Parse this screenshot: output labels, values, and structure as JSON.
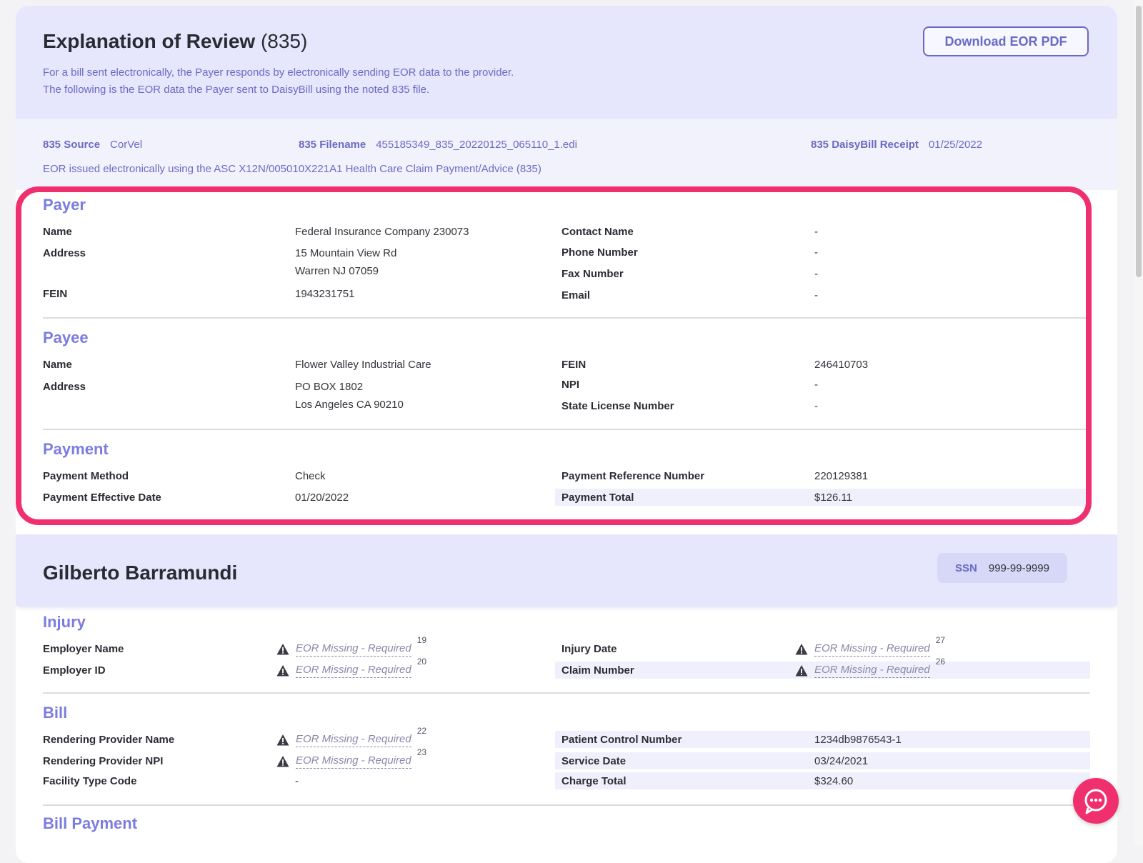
{
  "eor": {
    "title": "Explanation of Review",
    "title_num": "(835)",
    "desc_line1": "For a bill sent electronically, the Payer responds by electronically sending EOR data to the provider.",
    "desc_line2": "The following is the EOR data the Payer sent to DaisyBill using the noted 835 file.",
    "download_label": "Download EOR PDF"
  },
  "meta": {
    "source_label": "835 Source",
    "source_value": "CorVel",
    "filename_label": "835 Filename",
    "filename_value": "455185349_835_20220125_065110_1.edi",
    "receipt_label": "835 DaisyBill Receipt",
    "receipt_value": "01/25/2022",
    "note": "EOR issued electronically using the ASC X12N/005010X221A1 Health Care Claim Payment/Advice (835)"
  },
  "payer": {
    "heading": "Payer",
    "name_label": "Name",
    "name_value": "Federal Insurance Company 230073",
    "address_label": "Address",
    "address_line1": "15 Mountain View Rd",
    "address_line2": "Warren NJ 07059",
    "fein_label": "FEIN",
    "fein_value": "1943231751",
    "contact_label": "Contact Name",
    "contact_value": "-",
    "phone_label": "Phone Number",
    "phone_value": "-",
    "fax_label": "Fax Number",
    "fax_value": "-",
    "email_label": "Email",
    "email_value": "-"
  },
  "payee": {
    "heading": "Payee",
    "name_label": "Name",
    "name_value": "Flower Valley Industrial Care",
    "address_label": "Address",
    "address_line1": "PO BOX 1802",
    "address_line2": "Los Angeles CA 90210",
    "fein_label": "FEIN",
    "fein_value": "246410703",
    "npi_label": "NPI",
    "npi_value": "-",
    "license_label": "State License Number",
    "license_value": "-"
  },
  "payment": {
    "heading": "Payment",
    "method_label": "Payment Method",
    "method_value": "Check",
    "effective_label": "Payment Effective Date",
    "effective_value": "01/20/2022",
    "reference_label": "Payment Reference Number",
    "reference_value": "220129381",
    "total_label": "Payment Total",
    "total_value": "$126.11"
  },
  "patient": {
    "name": "Gilberto Barramundi",
    "ssn_label": "SSN",
    "ssn_value": "999-99-9999"
  },
  "injury": {
    "heading": "Injury",
    "employer_name_label": "Employer Name",
    "employer_id_label": "Employer ID",
    "injury_date_label": "Injury Date",
    "claim_number_label": "Claim Number",
    "missing_text": "EOR Missing - Required",
    "sup_employer_name": "19",
    "sup_employer_id": "20",
    "sup_injury_date": "27",
    "sup_claim_number": "26"
  },
  "bill": {
    "heading": "Bill",
    "rendering_name_label": "Rendering Provider Name",
    "rendering_npi_label": "Rendering Provider NPI",
    "facility_label": "Facility Type Code",
    "facility_value": "-",
    "missing_text": "EOR Missing - Required",
    "sup_rendering_name": "22",
    "sup_rendering_npi": "23",
    "pcn_label": "Patient Control Number",
    "pcn_value": "1234db9876543-1",
    "service_date_label": "Service Date",
    "service_date_value": "03/24/2021",
    "charge_total_label": "Charge Total",
    "charge_total_value": "$324.60"
  },
  "bill_payment": {
    "heading": "Bill Payment"
  },
  "colors": {
    "accent": "#6a6ac4",
    "heading": "#7c7ce0",
    "highlight_border": "#f0306e",
    "header_bg": "#e6e6fc"
  },
  "icons": {
    "warning": "warning-triangle-icon",
    "chat": "chat-bubble-icon"
  }
}
